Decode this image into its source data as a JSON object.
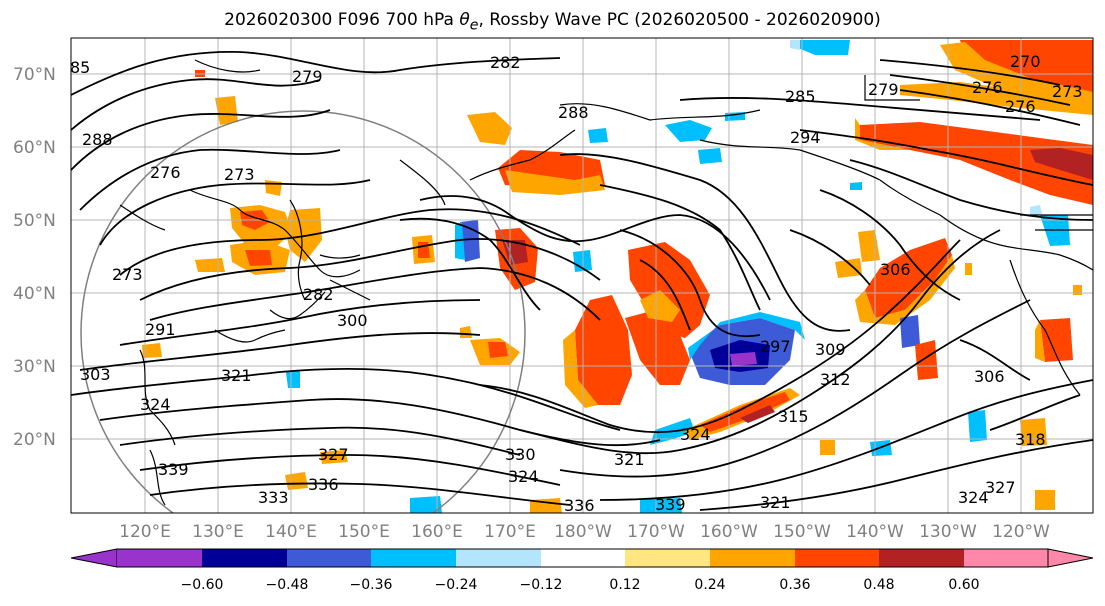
{
  "title": {
    "run": "2026020300",
    "forecast": "F096",
    "level": "700 hPa",
    "variable": "θ",
    "variable_sub": "e",
    "product": ", Rossby Wave PC",
    "period": "(2026020500 - 2026020900)"
  },
  "map": {
    "lat_labels": [
      "70°N",
      "60°N",
      "50°N",
      "40°N",
      "30°N",
      "20°N"
    ],
    "lon_labels": [
      "120°E",
      "130°E",
      "140°E",
      "150°E",
      "160°E",
      "170°E",
      "180°W",
      "170°W",
      "160°W",
      "150°W",
      "140°W",
      "130°W",
      "120°W"
    ],
    "contour_labels": [
      "85",
      "282",
      "279",
      "288",
      "288",
      "285",
      "279",
      "276",
      "270",
      "273",
      "276",
      "273",
      "294",
      "273",
      "276",
      "282",
      "300",
      "291",
      "303",
      "321",
      "324",
      "297",
      "309",
      "312",
      "315",
      "306",
      "306",
      "324",
      "321",
      "318",
      "327",
      "339",
      "336",
      "333",
      "330",
      "324",
      "321",
      "324",
      "327",
      "339",
      "336"
    ],
    "colors": {
      "contour": "#000000",
      "coast": "#000000",
      "grid": "#b4b4b4",
      "circle": "#7f7f7f"
    }
  },
  "colorbar": {
    "ticks": [
      "−0.60",
      "−0.48",
      "−0.36",
      "−0.24",
      "−0.12",
      "0.12",
      "0.24",
      "0.36",
      "0.48",
      "0.60"
    ],
    "colors": [
      "#9933cc",
      "#000099",
      "#3d5bd6",
      "#00bfff",
      "#b3e5fc",
      "#ffffff",
      "#ffe680",
      "#ffa500",
      "#ff4500",
      "#b22222",
      "#ff88aa"
    ]
  }
}
